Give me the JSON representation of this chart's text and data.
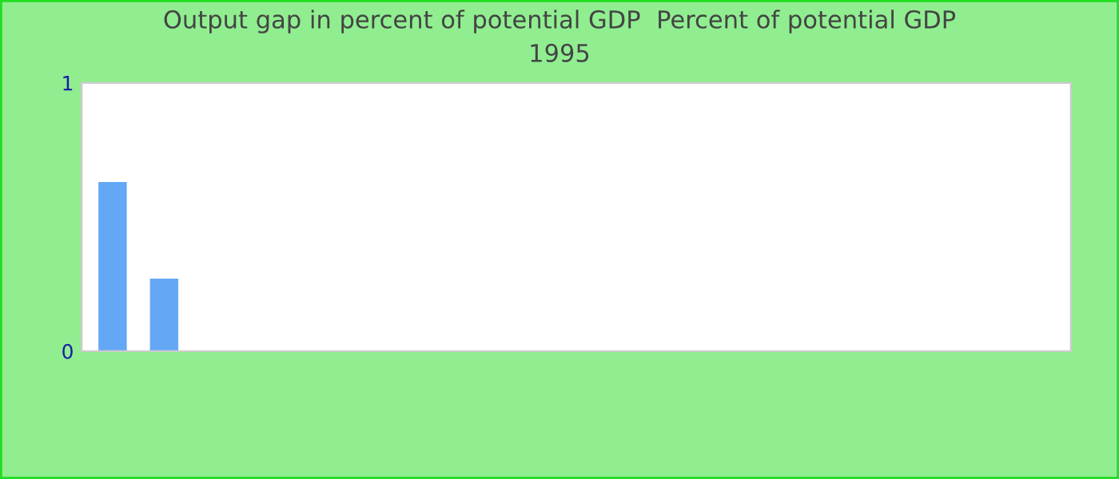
{
  "chart_data": {
    "type": "bar",
    "title": "Output gap in percent of potential GDP  Percent of potential GDP",
    "subtitle": "1995",
    "categories": [
      null,
      null,
      null,
      null,
      null,
      null,
      null,
      null,
      null,
      null,
      null,
      null,
      null,
      null,
      null,
      null,
      null,
      null,
      null
    ],
    "values": [
      0.63,
      0.27,
      null,
      null,
      null,
      null,
      null,
      null,
      null,
      null,
      null,
      null,
      null,
      null,
      null,
      null,
      null,
      null,
      null
    ],
    "color": "#64a8f5",
    "ylim": [
      0,
      1
    ],
    "yticks": [
      0,
      1
    ],
    "grid": false,
    "legend": false
  }
}
